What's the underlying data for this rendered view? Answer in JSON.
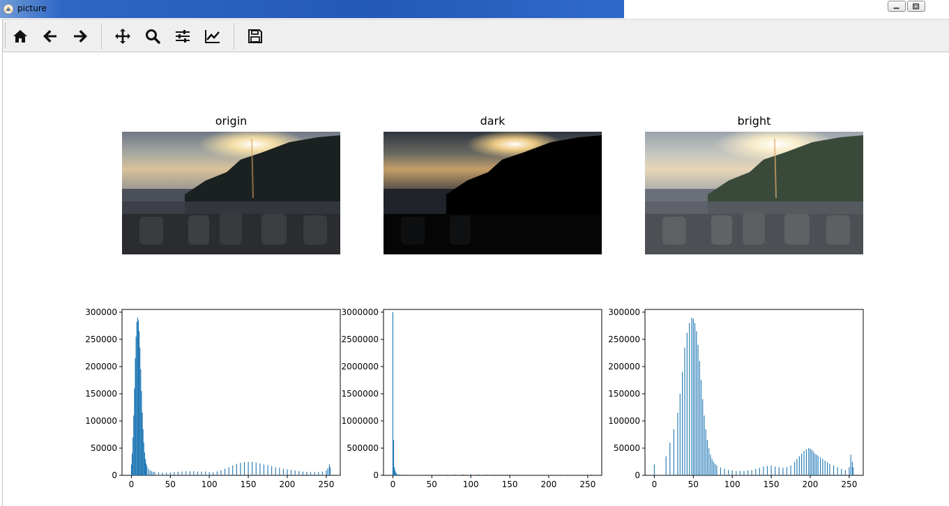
{
  "window": {
    "title": "picture"
  },
  "toolbar": {
    "buttons": [
      {
        "name": "home-icon",
        "tooltip": ""
      },
      {
        "name": "back-icon",
        "tooltip": ""
      },
      {
        "name": "forward-icon",
        "tooltip": ""
      },
      {
        "name": "pan-icon",
        "tooltip": ""
      },
      {
        "name": "zoom-icon",
        "tooltip": ""
      },
      {
        "name": "subplots-icon",
        "tooltip": ""
      },
      {
        "name": "edit-curves-icon",
        "tooltip": ""
      },
      {
        "name": "save-icon",
        "tooltip": ""
      }
    ]
  },
  "images": [
    {
      "title": "origin",
      "variant": "origin"
    },
    {
      "title": "dark",
      "variant": "dark"
    },
    {
      "title": "bright",
      "variant": "bright"
    }
  ],
  "colors": {
    "bar": "#1f77b4",
    "toolbar_bg": "#efefef"
  },
  "chart_data": [
    {
      "type": "bar",
      "title": "",
      "xlabel": "",
      "ylabel": "",
      "xlim": [
        -12,
        268
      ],
      "ylim": [
        0,
        305000
      ],
      "xticks": [
        "0",
        "50",
        "100",
        "150",
        "200",
        "250"
      ],
      "yticks": [
        "0",
        "50000",
        "100000",
        "150000",
        "200000",
        "250000",
        "300000"
      ],
      "x": [
        0,
        1,
        2,
        3,
        4,
        5,
        6,
        7,
        8,
        9,
        10,
        11,
        12,
        13,
        14,
        15,
        16,
        17,
        18,
        19,
        20,
        22,
        24,
        26,
        28,
        30,
        35,
        40,
        45,
        50,
        55,
        60,
        65,
        70,
        75,
        80,
        85,
        90,
        95,
        100,
        105,
        110,
        115,
        120,
        125,
        130,
        135,
        140,
        145,
        150,
        155,
        160,
        165,
        170,
        175,
        180,
        185,
        190,
        195,
        200,
        205,
        210,
        215,
        220,
        225,
        230,
        235,
        240,
        245,
        250,
        252,
        254,
        255
      ],
      "values": [
        20000,
        40000,
        70000,
        110000,
        160000,
        215000,
        255000,
        282000,
        290000,
        285000,
        265000,
        235000,
        195000,
        155000,
        115000,
        85000,
        60000,
        42000,
        30000,
        22000,
        17000,
        12000,
        9000,
        7500,
        6500,
        6000,
        5500,
        5000,
        5000,
        5500,
        6000,
        6500,
        7000,
        7500,
        7500,
        7500,
        7000,
        7000,
        7000,
        6000,
        5500,
        7000,
        9000,
        12000,
        15000,
        18000,
        21000,
        23000,
        24500,
        25000,
        25000,
        23500,
        22000,
        20000,
        19000,
        17000,
        15000,
        14000,
        12000,
        11000,
        10000,
        9000,
        8000,
        7000,
        6500,
        6000,
        6000,
        6500,
        7000,
        9000,
        13000,
        20000,
        15000
      ]
    },
    {
      "type": "bar",
      "title": "",
      "xlabel": "",
      "ylabel": "",
      "xlim": [
        -12,
        268
      ],
      "ylim": [
        0,
        3050000
      ],
      "xticks": [
        "0",
        "50",
        "100",
        "150",
        "200",
        "250"
      ],
      "yticks": [
        "0",
        "500000",
        "1000000",
        "1500000",
        "2000000",
        "2500000",
        "3000000"
      ],
      "x": [
        0,
        1,
        2,
        3,
        4,
        5,
        8,
        12,
        20,
        30,
        40,
        50,
        60,
        70,
        80,
        90,
        100,
        110,
        120,
        130,
        140,
        150,
        160,
        170,
        180,
        190,
        200,
        210,
        220,
        230,
        240,
        250,
        255
      ],
      "values": [
        3000000,
        650000,
        150000,
        90000,
        50000,
        30000,
        20000,
        15000,
        10000,
        8000,
        7000,
        10000,
        12000,
        15000,
        18000,
        20000,
        22000,
        21000,
        19000,
        17000,
        15000,
        13000,
        12000,
        10000,
        8000,
        7000,
        6000,
        6000,
        6000,
        7000,
        8000,
        10000,
        15000
      ]
    },
    {
      "type": "bar",
      "title": "",
      "xlabel": "",
      "ylabel": "",
      "xlim": [
        -12,
        268
      ],
      "ylim": [
        0,
        305000
      ],
      "xticks": [
        "0",
        "50",
        "100",
        "150",
        "200",
        "250"
      ],
      "yticks": [
        "0",
        "50000",
        "100000",
        "150000",
        "200000",
        "250000",
        "300000"
      ],
      "x": [
        0,
        15,
        20,
        25,
        30,
        33,
        36,
        39,
        42,
        45,
        48,
        50,
        52,
        54,
        56,
        58,
        60,
        62,
        64,
        66,
        68,
        70,
        72,
        74,
        76,
        78,
        80,
        85,
        90,
        95,
        100,
        105,
        110,
        115,
        120,
        125,
        130,
        135,
        140,
        145,
        150,
        155,
        160,
        165,
        170,
        175,
        180,
        183,
        186,
        189,
        192,
        195,
        198,
        200,
        202,
        204,
        206,
        208,
        210,
        213,
        216,
        219,
        222,
        225,
        230,
        235,
        240,
        245,
        250,
        252,
        254,
        255
      ],
      "values": [
        20000,
        35000,
        60000,
        85000,
        115000,
        150000,
        190000,
        235000,
        262000,
        280000,
        290000,
        288000,
        280000,
        265000,
        240000,
        210000,
        175000,
        140000,
        110000,
        85000,
        65000,
        50000,
        38000,
        30000,
        25000,
        21000,
        18000,
        14000,
        12000,
        10000,
        9000,
        8000,
        8000,
        8000,
        9000,
        10000,
        12000,
        14000,
        16000,
        17000,
        18000,
        16000,
        15000,
        14000,
        15000,
        18000,
        25000,
        30000,
        35000,
        40000,
        45000,
        48000,
        50000,
        49000,
        47000,
        44000,
        40000,
        38000,
        36000,
        33000,
        30000,
        27000,
        24000,
        21000,
        18000,
        15000,
        12000,
        10000,
        15000,
        38000,
        25000,
        15000
      ]
    }
  ]
}
